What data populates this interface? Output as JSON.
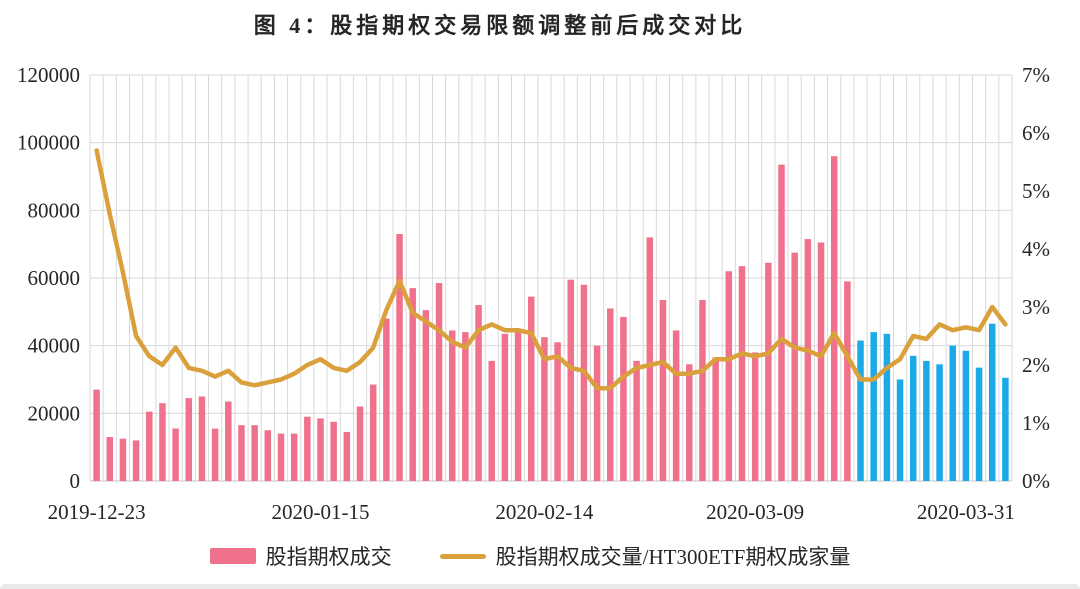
{
  "title": "图 4：股指期权交易限额调整前后成交对比",
  "legend": [
    {
      "label": "股指期权成交",
      "type": "bar-swatch",
      "color": "#F0718C"
    },
    {
      "label": "股指期权成交量/HT300ETF期权成家量",
      "type": "line-swatch",
      "color": "#D9A03C"
    }
  ],
  "colors": {
    "bar_pink": "#F0718C",
    "bar_blue": "#1CA9E8",
    "line_orange": "#D9A03C",
    "gridline": "#D9D9D9",
    "axis_text": "#262626"
  },
  "chart_data": {
    "type": "bar",
    "subtype": "bar-with-line-combo",
    "title": "图 4：股指期权交易限额调整前后成交对比",
    "xlabel": "",
    "ylabel_left": "",
    "ylabel_right": "",
    "left_axis": {
      "min": 0,
      "max": 120000,
      "tick_step": 20000,
      "tick_labels": [
        "0",
        "20000",
        "40000",
        "60000",
        "80000",
        "100000",
        "120000"
      ]
    },
    "right_axis": {
      "min": 0,
      "max": 7,
      "tick_step": 1,
      "tick_labels": [
        "0%",
        "1%",
        "2%",
        "3%",
        "4%",
        "5%",
        "6%",
        "7%"
      ]
    },
    "x_tick_labels": [
      "2019-12-23",
      "2020-01-15",
      "2020-02-14",
      "2020-03-09",
      "2020-03-31"
    ],
    "x_tick_bar_indices": [
      0,
      17,
      34,
      50,
      66
    ],
    "grid": {
      "horizontal": true,
      "vertical": true
    },
    "legend_position": "bottom",
    "bar_color_split_index": 58,
    "series": [
      {
        "name": "股指期权成交",
        "type": "bar",
        "axis": "left",
        "values": [
          27000,
          13000,
          12500,
          12000,
          20500,
          23000,
          15500,
          24500,
          25000,
          15500,
          23500,
          16500,
          16500,
          15000,
          14000,
          14000,
          19000,
          18500,
          17500,
          14500,
          22000,
          28500,
          48000,
          73000,
          57000,
          50500,
          58500,
          44500,
          44000,
          52000,
          35500,
          43500,
          44000,
          54500,
          42500,
          41000,
          59500,
          58000,
          40000,
          51000,
          48500,
          35500,
          72000,
          53500,
          44500,
          34500,
          53500,
          36500,
          62000,
          63500,
          38000,
          64500,
          93500,
          67500,
          71500,
          70500,
          96000,
          59000,
          41500,
          44000,
          43500,
          30000,
          37000,
          35500,
          34500,
          40000,
          38500,
          33500,
          46500,
          30500
        ]
      },
      {
        "name": "股指期权成交量/HT300ETF期权成家量",
        "type": "line",
        "axis": "right",
        "values_percent": [
          5.7,
          4.6,
          3.6,
          2.5,
          2.15,
          2.0,
          2.3,
          1.95,
          1.9,
          1.8,
          1.9,
          1.7,
          1.65,
          1.7,
          1.75,
          1.85,
          2.0,
          2.1,
          1.95,
          1.9,
          2.05,
          2.3,
          2.95,
          3.45,
          2.9,
          2.75,
          2.6,
          2.4,
          2.3,
          2.6,
          2.7,
          2.6,
          2.6,
          2.55,
          2.1,
          2.15,
          1.95,
          1.9,
          1.6,
          1.6,
          1.8,
          1.95,
          2.0,
          2.05,
          1.85,
          1.85,
          1.9,
          2.1,
          2.1,
          2.2,
          2.15,
          2.2,
          2.45,
          2.3,
          2.25,
          2.15,
          2.55,
          2.15,
          1.75,
          1.75,
          1.95,
          2.1,
          2.5,
          2.45,
          2.7,
          2.6,
          2.65,
          2.6,
          3.0,
          2.7
        ]
      }
    ]
  }
}
